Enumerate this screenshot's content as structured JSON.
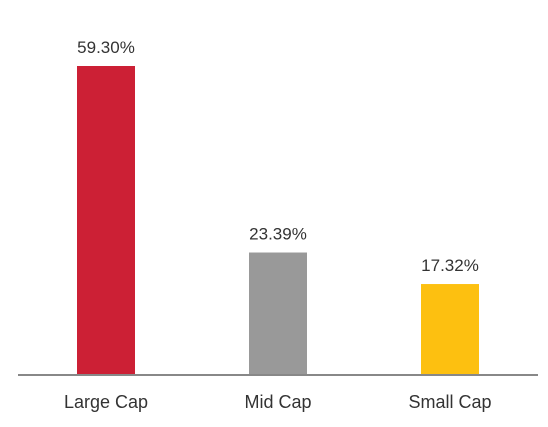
{
  "chart_data": {
    "type": "bar",
    "categories": [
      "Large Cap",
      "Mid Cap",
      "Small Cap"
    ],
    "values": [
      59.3,
      23.39,
      17.32
    ],
    "data_labels": [
      "59.30%",
      "23.39%",
      "17.32%"
    ],
    "colors": [
      "#cc2035",
      "#999999",
      "#fdc010"
    ],
    "axis_color": "#888888",
    "ylim": [
      0,
      59.3
    ],
    "grid": false,
    "legend": "none"
  }
}
